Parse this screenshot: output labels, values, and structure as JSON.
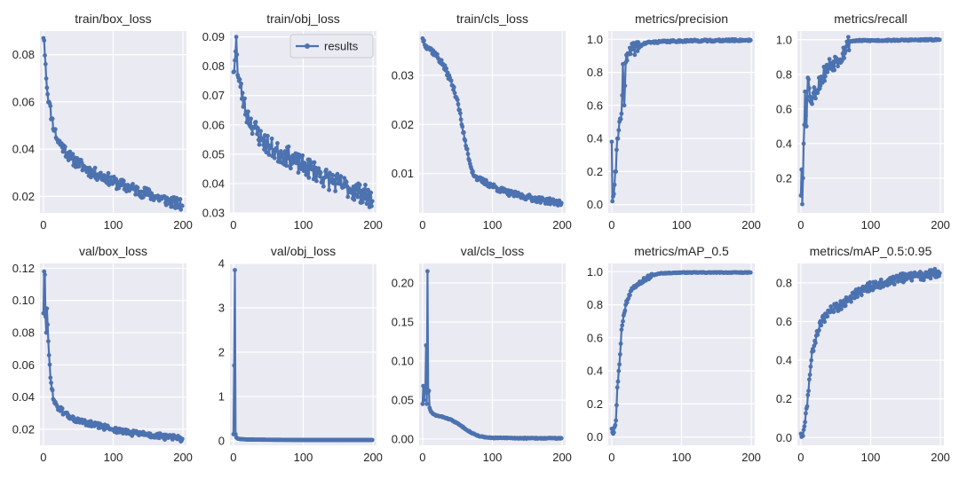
{
  "figure": {
    "background": "#ffffff",
    "panel_background": "#eaeaf2",
    "grid_color": "#ffffff",
    "series_color": "#4c72b0"
  },
  "legend": {
    "label": "results",
    "panel": 1,
    "placement": "top-right"
  },
  "chart_data": [
    {
      "type": "line",
      "title": "train/box_loss",
      "xlim": [
        -5,
        205
      ],
      "ylim": [
        0.013,
        0.09
      ],
      "xticks": [
        0,
        100,
        200
      ],
      "yticks": [
        0.02,
        0.04,
        0.06,
        0.08
      ],
      "ytick_labels": [
        "0.02",
        "0.04",
        "0.06",
        "0.08"
      ],
      "grid": true,
      "curve": {
        "x": [
          0,
          1,
          3,
          5,
          8,
          12,
          16,
          20,
          30,
          40,
          50,
          60,
          70,
          80,
          90,
          100,
          110,
          120,
          130,
          140,
          150,
          160,
          170,
          180,
          190,
          199
        ],
        "y": [
          0.087,
          0.086,
          0.076,
          0.066,
          0.06,
          0.053,
          0.048,
          0.044,
          0.04,
          0.036,
          0.034,
          0.032,
          0.03,
          0.029,
          0.028,
          0.026,
          0.025,
          0.024,
          0.023,
          0.022,
          0.021,
          0.02,
          0.019,
          0.018,
          0.017,
          0.016
        ]
      },
      "noise": 0.0025,
      "seed": 11
    },
    {
      "type": "line",
      "title": "train/obj_loss",
      "xlim": [
        -5,
        205
      ],
      "ylim": [
        0.03,
        0.092
      ],
      "xticks": [
        0,
        100,
        200
      ],
      "yticks": [
        0.03,
        0.04,
        0.05,
        0.06,
        0.07,
        0.08,
        0.09
      ],
      "ytick_labels": [
        "0.03",
        "0.04",
        "0.05",
        "0.06",
        "0.07",
        "0.08",
        "0.09"
      ],
      "grid": true,
      "curve": {
        "x": [
          0,
          2,
          4,
          6,
          8,
          10,
          15,
          20,
          30,
          40,
          50,
          60,
          70,
          80,
          90,
          100,
          110,
          120,
          130,
          140,
          150,
          160,
          170,
          180,
          190,
          199
        ],
        "y": [
          0.078,
          0.082,
          0.09,
          0.077,
          0.075,
          0.073,
          0.067,
          0.063,
          0.059,
          0.055,
          0.053,
          0.051,
          0.05,
          0.049,
          0.047,
          0.046,
          0.045,
          0.044,
          0.042,
          0.041,
          0.04,
          0.039,
          0.038,
          0.037,
          0.036,
          0.034
        ]
      },
      "noise": 0.0035,
      "seed": 23
    },
    {
      "type": "line",
      "title": "train/cls_loss",
      "xlim": [
        -5,
        205
      ],
      "ylim": [
        0.002,
        0.039
      ],
      "xticks": [
        0,
        100,
        200
      ],
      "yticks": [
        0.01,
        0.02,
        0.03
      ],
      "ytick_labels": [
        "0.01",
        "0.02",
        "0.03"
      ],
      "grid": true,
      "curve": {
        "x": [
          0,
          5,
          10,
          20,
          30,
          40,
          50,
          55,
          60,
          65,
          70,
          75,
          80,
          90,
          100,
          110,
          120,
          130,
          140,
          150,
          160,
          170,
          180,
          190,
          199
        ],
        "y": [
          0.0375,
          0.036,
          0.0355,
          0.034,
          0.032,
          0.029,
          0.025,
          0.021,
          0.017,
          0.014,
          0.011,
          0.0095,
          0.0088,
          0.0082,
          0.0075,
          0.0068,
          0.0062,
          0.0058,
          0.0055,
          0.0052,
          0.0049,
          0.0046,
          0.0044,
          0.0042,
          0.004
        ]
      },
      "noise": 0.0006,
      "seed": 37
    },
    {
      "type": "line",
      "title": "metrics/precision",
      "xlim": [
        -5,
        205
      ],
      "ylim": [
        -0.05,
        1.05
      ],
      "xticks": [
        0,
        100,
        200
      ],
      "yticks": [
        0.0,
        0.2,
        0.4,
        0.6,
        0.8,
        1.0
      ],
      "ytick_labels": [
        "0.0",
        "0.2",
        "0.4",
        "0.6",
        "0.8",
        "1.0"
      ],
      "grid": true,
      "curve": {
        "x": [
          0,
          1,
          2,
          4,
          6,
          8,
          10,
          12,
          14,
          16,
          18,
          20,
          25,
          30,
          40,
          50,
          70,
          100,
          199
        ],
        "y": [
          0.38,
          0.02,
          0.05,
          0.12,
          0.2,
          0.4,
          0.45,
          0.52,
          0.55,
          0.85,
          0.6,
          0.86,
          0.91,
          0.94,
          0.96,
          0.98,
          0.985,
          0.99,
          0.995
        ]
      },
      "noise": 0.04,
      "noise_until": 40,
      "noise_after": 0.006,
      "seed": 41
    },
    {
      "type": "line",
      "title": "metrics/recall",
      "xlim": [
        -5,
        205
      ],
      "ylim": [
        0.0,
        1.05
      ],
      "xticks": [
        0,
        100,
        200
      ],
      "yticks": [
        0.2,
        0.4,
        0.6,
        0.8,
        1.0
      ],
      "ytick_labels": [
        "0.2",
        "0.4",
        "0.6",
        "0.8",
        "1.0"
      ],
      "grid": true,
      "curve": {
        "x": [
          0,
          1,
          2,
          4,
          6,
          8,
          10,
          12,
          15,
          20,
          30,
          40,
          50,
          60,
          65,
          70,
          80,
          100,
          199
        ],
        "y": [
          0.1,
          0.25,
          0.05,
          0.4,
          0.7,
          0.5,
          0.78,
          0.72,
          0.65,
          0.7,
          0.78,
          0.85,
          0.88,
          0.92,
          0.96,
          0.99,
          0.995,
          0.995,
          1.0
        ]
      },
      "noise": 0.05,
      "noise_until": 70,
      "noise_after": 0.004,
      "seed": 53
    },
    {
      "type": "line",
      "title": "val/box_loss",
      "xlim": [
        -5,
        205
      ],
      "ylim": [
        0.01,
        0.123
      ],
      "xticks": [
        0,
        100,
        200
      ],
      "yticks": [
        0.02,
        0.04,
        0.06,
        0.08,
        0.1,
        0.12
      ],
      "ytick_labels": [
        "0.02",
        "0.04",
        "0.06",
        "0.08",
        "0.10",
        "0.12"
      ],
      "grid": true,
      "curve": {
        "x": [
          0,
          1,
          2,
          3,
          4,
          5,
          6,
          8,
          10,
          12,
          15,
          20,
          30,
          40,
          50,
          60,
          70,
          80,
          90,
          100,
          110,
          120,
          130,
          140,
          150,
          160,
          170,
          180,
          190,
          199
        ],
        "y": [
          0.092,
          0.118,
          0.116,
          0.09,
          0.08,
          0.095,
          0.085,
          0.066,
          0.052,
          0.045,
          0.038,
          0.034,
          0.03,
          0.027,
          0.025,
          0.024,
          0.023,
          0.022,
          0.021,
          0.02,
          0.019,
          0.018,
          0.0175,
          0.017,
          0.0165,
          0.016,
          0.0155,
          0.015,
          0.0145,
          0.014
        ]
      },
      "noise": 0.0018,
      "seed": 61
    },
    {
      "type": "line",
      "title": "val/obj_loss",
      "xlim": [
        -5,
        205
      ],
      "ylim": [
        -0.1,
        4.0
      ],
      "xticks": [
        0,
        100,
        200
      ],
      "yticks": [
        0,
        1,
        2,
        3,
        4
      ],
      "ytick_labels": [
        "0",
        "1",
        "2",
        "3",
        "4"
      ],
      "grid": true,
      "curve": {
        "x": [
          0,
          1,
          2,
          3,
          4,
          6,
          10,
          20,
          50,
          100,
          150,
          199
        ],
        "y": [
          0.15,
          1.7,
          3.85,
          0.15,
          0.08,
          0.05,
          0.04,
          0.03,
          0.025,
          0.02,
          0.02,
          0.02
        ]
      },
      "noise": 0.0,
      "seed": 71
    },
    {
      "type": "line",
      "title": "val/cls_loss",
      "xlim": [
        -5,
        205
      ],
      "ylim": [
        -0.008,
        0.225
      ],
      "xticks": [
        0,
        100,
        200
      ],
      "yticks": [
        0.0,
        0.05,
        0.1,
        0.15,
        0.2
      ],
      "ytick_labels": [
        "0.00",
        "0.05",
        "0.10",
        "0.15",
        "0.20"
      ],
      "grid": true,
      "curve": {
        "x": [
          0,
          1,
          2,
          3,
          4,
          5,
          6,
          7,
          8,
          9,
          10,
          12,
          15,
          20,
          30,
          40,
          50,
          60,
          70,
          80,
          90,
          100,
          150,
          199
        ],
        "y": [
          0.045,
          0.068,
          0.05,
          0.06,
          0.065,
          0.12,
          0.045,
          0.215,
          0.06,
          0.062,
          0.04,
          0.035,
          0.032,
          0.03,
          0.028,
          0.025,
          0.02,
          0.014,
          0.008,
          0.004,
          0.002,
          0.0015,
          0.001,
          0.001
        ]
      },
      "noise": 0.0006,
      "seed": 83
    },
    {
      "type": "line",
      "title": "metrics/mAP_0.5",
      "xlim": [
        -5,
        205
      ],
      "ylim": [
        -0.05,
        1.05
      ],
      "xticks": [
        0,
        100,
        200
      ],
      "yticks": [
        0.0,
        0.2,
        0.4,
        0.6,
        0.8,
        1.0
      ],
      "ytick_labels": [
        "0.0",
        "0.2",
        "0.4",
        "0.6",
        "0.8",
        "1.0"
      ],
      "grid": true,
      "curve": {
        "x": [
          0,
          2,
          4,
          6,
          8,
          10,
          12,
          14,
          16,
          18,
          20,
          25,
          30,
          40,
          50,
          60,
          70,
          100,
          199
        ],
        "y": [
          0.05,
          0.02,
          0.06,
          0.1,
          0.3,
          0.4,
          0.5,
          0.65,
          0.7,
          0.75,
          0.8,
          0.86,
          0.9,
          0.94,
          0.96,
          0.98,
          0.99,
          0.995,
          0.995
        ]
      },
      "noise": 0.015,
      "noise_until": 60,
      "noise_after": 0.002,
      "seed": 97
    },
    {
      "type": "line",
      "title": "metrics/mAP_0.5:0.95",
      "xlim": [
        -5,
        205
      ],
      "ylim": [
        -0.04,
        0.9
      ],
      "xticks": [
        0,
        100,
        200
      ],
      "yticks": [
        0.0,
        0.2,
        0.4,
        0.6,
        0.8
      ],
      "ytick_labels": [
        "0.0",
        "0.2",
        "0.4",
        "0.6",
        "0.8"
      ],
      "grid": true,
      "curve": {
        "x": [
          0,
          2,
          4,
          6,
          8,
          10,
          12,
          15,
          20,
          25,
          30,
          40,
          50,
          60,
          70,
          80,
          100,
          120,
          140,
          160,
          180,
          199
        ],
        "y": [
          0.02,
          0.01,
          0.04,
          0.08,
          0.15,
          0.22,
          0.3,
          0.4,
          0.5,
          0.55,
          0.6,
          0.65,
          0.67,
          0.69,
          0.72,
          0.75,
          0.78,
          0.8,
          0.82,
          0.83,
          0.84,
          0.85
        ]
      },
      "noise": 0.025,
      "seed": 109
    }
  ]
}
